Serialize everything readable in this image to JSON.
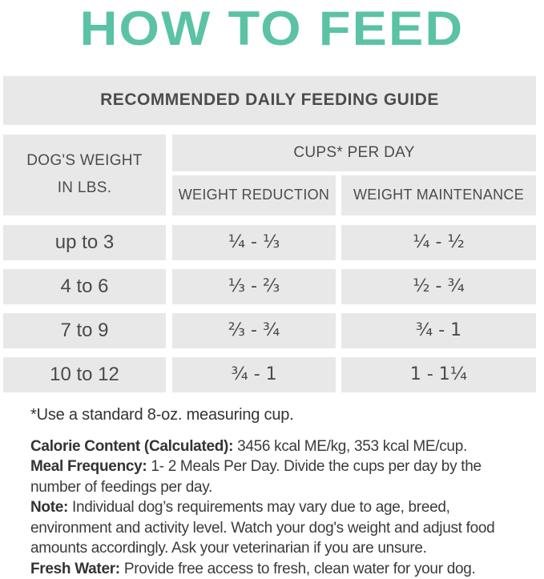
{
  "title": "HOW TO FEED",
  "colors": {
    "accent_teal": "#5BC2A6",
    "cell_background": "#E8E8E8",
    "table_text": "#4C4C4C",
    "body_text": "#3B3B3B"
  },
  "table": {
    "banner": "RECOMMENDED DAILY FEEDING GUIDE",
    "weight_header_line1": "DOG'S WEIGHT",
    "weight_header_line2": "IN LBS.",
    "cups_header": "CUPS* PER DAY",
    "col_reduction": "WEIGHT REDUCTION",
    "col_maintenance": "WEIGHT MAINTENANCE",
    "rows": [
      {
        "weight": "up to 3",
        "reduction": "¼ - ⅓",
        "maintenance": "¼ - ½"
      },
      {
        "weight": "4 to 6",
        "reduction": "⅓ - ⅔",
        "maintenance": "½ - ¾"
      },
      {
        "weight": "7 to 9",
        "reduction": "⅔ - ¾",
        "maintenance": "¾ - 1"
      },
      {
        "weight": "10 to 12",
        "reduction": "¾ - 1",
        "maintenance": "1 - 1¼"
      }
    ]
  },
  "footnote": "*Use a standard 8-oz. measuring cup.",
  "notes": [
    {
      "label": "Calorie Content (Calculated):",
      "text": " 3456 kcal ME/kg, 353 kcal ME/cup."
    },
    {
      "label": "Meal Frequency:",
      "text": " 1- 2 Meals Per Day. Divide the cups per day by the number of feedings per day."
    },
    {
      "label": "Note:",
      "text": " Individual dog’s requirements may vary due to age, breed, environment and activity level. Watch your dog's weight and adjust food amounts accordingly.  Ask your veterinarian if you are unsure."
    },
    {
      "label": "Fresh Water:",
      "text": " Provide free access to fresh, clean water for your dog."
    }
  ]
}
